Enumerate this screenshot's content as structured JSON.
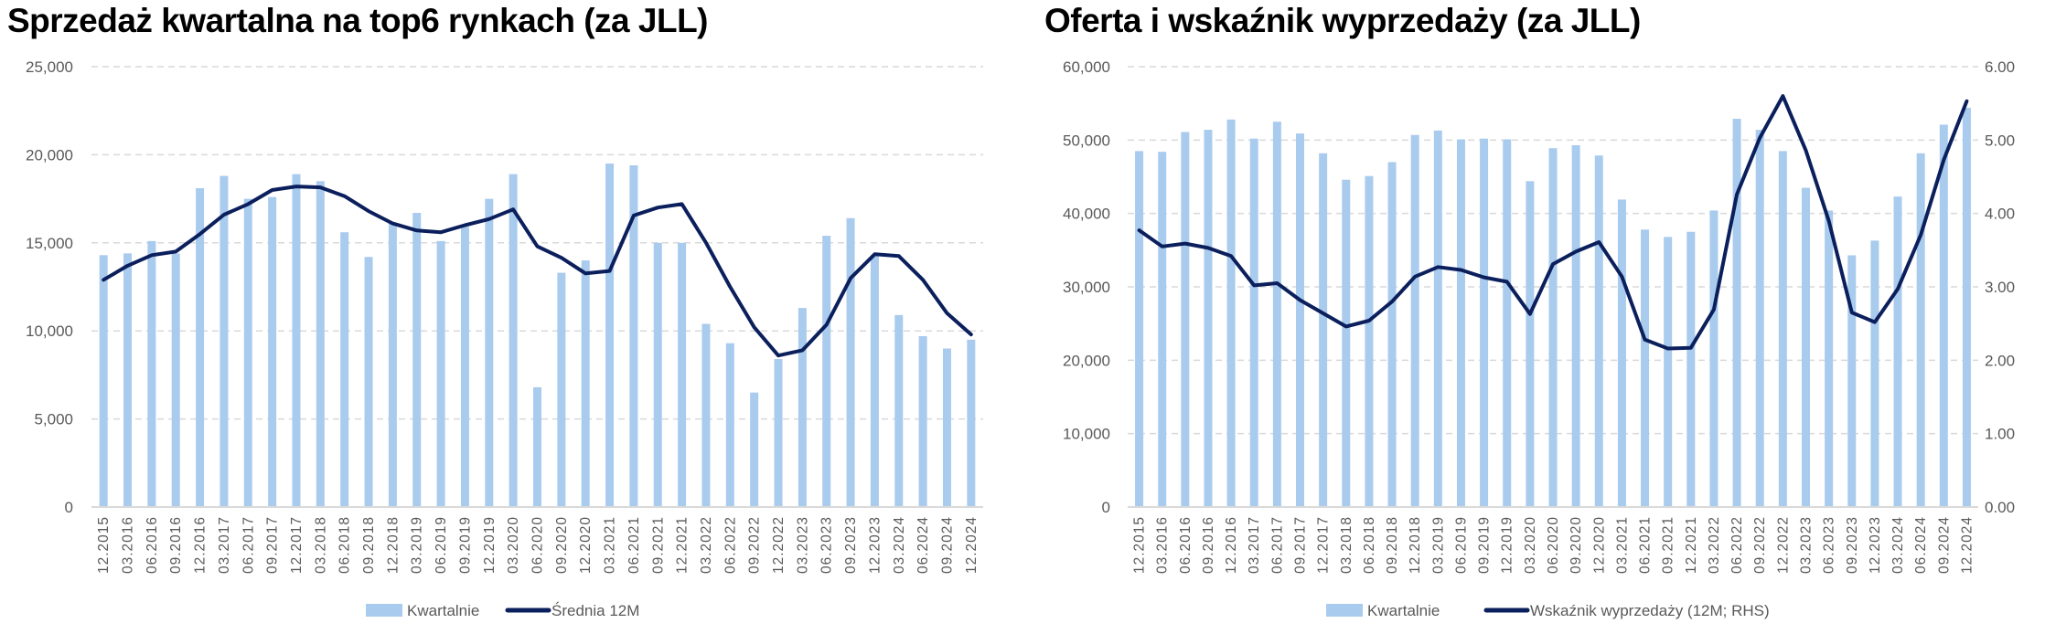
{
  "colors": {
    "bar": "#A9CBEE",
    "line": "#0B1F5C",
    "grid": "#D9D9D9",
    "axis": "#D9D9D9"
  },
  "chart_data": [
    {
      "type": "bar+line",
      "title": "Sprzedaż kwartalna na top6 rynkach (za JLL)",
      "categories": [
        "12.2015",
        "03.2016",
        "06.2016",
        "09.2016",
        "12.2016",
        "03.2017",
        "06.2017",
        "09.2017",
        "12.2017",
        "03.2018",
        "06.2018",
        "09.2018",
        "12.2018",
        "03.2019",
        "06.2019",
        "09.2019",
        "12.2019",
        "03.2020",
        "06.2020",
        "09.2020",
        "12.2020",
        "03.2021",
        "06.2021",
        "09.2021",
        "12.2021",
        "03.2022",
        "06.2022",
        "09.2022",
        "12.2022",
        "03.2023",
        "06.2023",
        "09.2023",
        "12.2023",
        "03.2024",
        "06.2024",
        "09.2024",
        "12.2024"
      ],
      "ylim": [
        0,
        25000
      ],
      "yticks": [
        "0",
        "5,000",
        "10,000",
        "15,000",
        "20,000",
        "25,000"
      ],
      "grid": true,
      "legend_position": "bottom",
      "series": [
        {
          "name": "Kwartalnie",
          "kind": "bar",
          "axis": "left",
          "values": [
            14300,
            14400,
            15100,
            14400,
            18100,
            18800,
            17500,
            17600,
            18900,
            18500,
            15600,
            14200,
            16100,
            16700,
            15100,
            15900,
            17500,
            18900,
            6800,
            13300,
            14000,
            19500,
            19400,
            15000,
            15000,
            10400,
            9300,
            6500,
            8400,
            11300,
            15400,
            16400,
            14300,
            10900,
            9700,
            9000,
            9500
          ]
        },
        {
          "name": "Średnia 12M",
          "kind": "line",
          "axis": "left",
          "values": [
            12900,
            13700,
            14300,
            14500,
            15500,
            16600,
            17200,
            18000,
            18200,
            18150,
            17650,
            16800,
            16100,
            15700,
            15600,
            16000,
            16350,
            16900,
            14800,
            14150,
            13260,
            13400,
            16550,
            17000,
            17200,
            15000,
            12500,
            10200,
            8600,
            8900,
            10350,
            13000,
            14350,
            14250,
            12900,
            11000,
            9800
          ]
        }
      ]
    },
    {
      "type": "bar+line",
      "title": "Oferta i wskaźnik wyprzedaży (za JLL)",
      "categories": [
        "12.2015",
        "03.2016",
        "06.2016",
        "09.2016",
        "12.2016",
        "03.2017",
        "06.2017",
        "09.2017",
        "12.2017",
        "03.2018",
        "06.2018",
        "09.2018",
        "12.2018",
        "03.2019",
        "06.2019",
        "09.2019",
        "12.2019",
        "03.2020",
        "06.2020",
        "09.2020",
        "12.2020",
        "03.2021",
        "06.2021",
        "09.2021",
        "12.2021",
        "03.2022",
        "06.2022",
        "09.2022",
        "12.2022",
        "03.2023",
        "06.2023",
        "09.2023",
        "12.2023",
        "03.2024",
        "06.2024",
        "09.2024",
        "12.2024"
      ],
      "ylim": [
        0,
        60000
      ],
      "yticks": [
        "0",
        "10,000",
        "20,000",
        "30,000",
        "40,000",
        "50,000",
        "60,000"
      ],
      "y2lim": [
        0,
        6
      ],
      "y2ticks": [
        "0.00",
        "1.00",
        "2.00",
        "3.00",
        "4.00",
        "5.00",
        "6.00"
      ],
      "grid": true,
      "legend_position": "bottom",
      "series": [
        {
          "name": "Kwartalnie",
          "kind": "bar",
          "axis": "left",
          "values": [
            48500,
            48400,
            51100,
            51400,
            52800,
            50200,
            52500,
            50900,
            48200,
            44600,
            45100,
            47000,
            50700,
            51300,
            50100,
            50200,
            50100,
            44400,
            48900,
            49300,
            47900,
            41900,
            37800,
            36800,
            37500,
            40400,
            52900,
            51400,
            48500,
            43500,
            40400,
            34300,
            36300,
            42300,
            48200,
            52100,
            54400
          ]
        },
        {
          "name": "Wskaźnik wyprzedaży (12M; RHS)",
          "kind": "line",
          "axis": "right",
          "values": [
            3.77,
            3.55,
            3.59,
            3.53,
            3.42,
            3.02,
            3.05,
            2.82,
            2.64,
            2.46,
            2.54,
            2.8,
            3.14,
            3.27,
            3.23,
            3.13,
            3.07,
            2.63,
            3.31,
            3.48,
            3.61,
            3.14,
            2.28,
            2.16,
            2.17,
            2.69,
            4.26,
            5.03,
            5.6,
            4.86,
            3.9,
            2.65,
            2.52,
            2.97,
            3.71,
            4.73,
            5.53
          ]
        }
      ]
    }
  ]
}
